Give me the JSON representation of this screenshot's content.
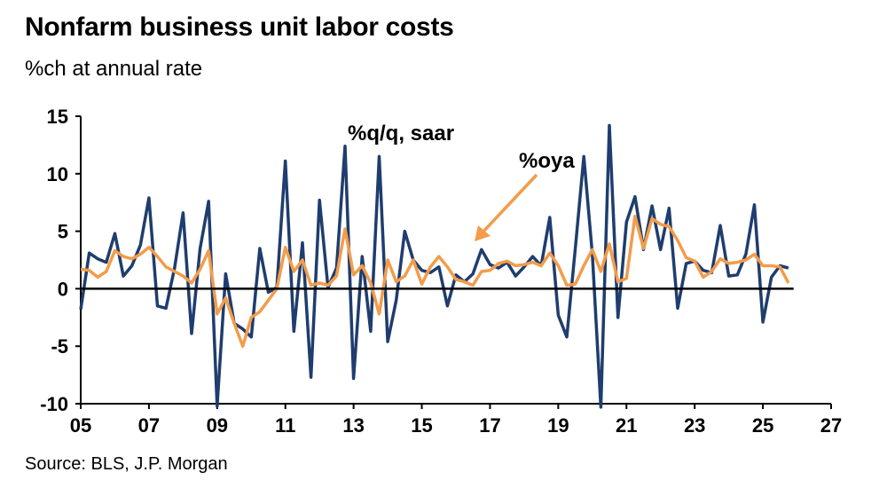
{
  "title": "Nonfarm business unit labor costs",
  "subtitle": "%ch at annual rate",
  "source": "Source: BLS, J.P. Morgan",
  "chart_data": {
    "type": "line",
    "xlim": [
      2005,
      2027
    ],
    "ylim": [
      -10,
      15
    ],
    "x_ticks": [
      5,
      7,
      9,
      11,
      13,
      15,
      17,
      19,
      21,
      23,
      25,
      27
    ],
    "x_tick_labels": [
      "05",
      "07",
      "09",
      "11",
      "13",
      "15",
      "17",
      "19",
      "21",
      "23",
      "25",
      "27"
    ],
    "y_ticks": [
      -10,
      -5,
      0,
      5,
      10,
      15
    ],
    "y_tick_labels": [
      "-10",
      "-5",
      "0",
      "5",
      "10",
      "15"
    ],
    "grid": false,
    "zero_line": true,
    "annotations": [
      {
        "text": "%q/q, saar",
        "series": "qq"
      },
      {
        "text": "%oya",
        "series": "oya",
        "arrow": true
      }
    ],
    "series": [
      {
        "id": "qq",
        "color": "#1f3d6e",
        "x_start": 2005.0,
        "step": 0.25,
        "values": [
          -1.8,
          3.1,
          2.6,
          2.3,
          4.8,
          1.1,
          2.0,
          3.8,
          7.9,
          -1.5,
          -1.7,
          1.8,
          6.6,
          -3.9,
          3.5,
          7.6,
          -10.2,
          1.3,
          -3.0,
          -3.5,
          -4.2,
          3.5,
          -0.3,
          0.1,
          11.1,
          -3.7,
          4.0,
          -7.7,
          7.7,
          0.1,
          1.8,
          12.4,
          -7.8,
          2.8,
          -3.7,
          11.5,
          -4.6,
          -1.0,
          5.0,
          2.5,
          1.6,
          1.4,
          1.9,
          -1.5,
          1.2,
          0.6,
          1.3,
          3.4,
          2.1,
          1.8,
          2.3,
          1.1,
          1.9,
          2.8,
          2.0,
          6.2,
          -2.3,
          -4.2,
          3.5,
          11.5,
          3.0,
          -10.3,
          14.2,
          -2.5,
          5.8,
          8.0,
          3.4,
          7.2,
          3.4,
          7.0,
          -1.7,
          2.2,
          2.4,
          1.6,
          1.4,
          5.5,
          1.1,
          1.2,
          3.0,
          7.3,
          -2.9,
          1.0,
          2.0,
          1.8
        ]
      },
      {
        "id": "oya",
        "color": "#f39c4a",
        "x_start": 2005.0,
        "step": 0.25,
        "values": [
          1.7,
          1.6,
          1.0,
          1.5,
          3.3,
          2.8,
          2.6,
          3.0,
          3.6,
          2.8,
          1.9,
          1.5,
          1.1,
          0.5,
          1.7,
          3.3,
          -2.2,
          -0.8,
          -3.0,
          -5.0,
          -2.5,
          -2.0,
          -1.0,
          0.0,
          3.6,
          1.5,
          2.5,
          0.3,
          0.5,
          0.3,
          1.1,
          5.2,
          1.2,
          2.0,
          0.5,
          -2.2,
          2.5,
          0.6,
          1.1,
          2.5,
          0.4,
          1.9,
          2.8,
          1.9,
          0.8,
          0.6,
          0.3,
          1.5,
          1.6,
          2.2,
          2.4,
          2.0,
          2.1,
          2.3,
          2.0,
          3.1,
          2.0,
          0.3,
          0.4,
          2.0,
          3.4,
          1.5,
          3.9,
          0.6,
          0.9,
          6.3,
          3.5,
          6.1,
          5.6,
          5.4,
          4.2,
          2.7,
          2.4,
          1.0,
          1.5,
          2.6,
          2.2,
          2.3,
          2.5,
          3.0,
          2.0,
          2.0,
          1.9,
          0.5
        ]
      }
    ]
  }
}
